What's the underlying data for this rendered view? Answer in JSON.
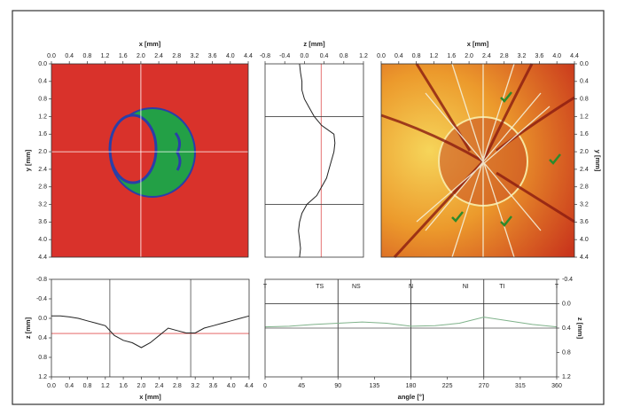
{
  "chart_data": [
    {
      "type": "image",
      "xlabel": "x [mm]",
      "ylabel": "y [mm]",
      "xlim": [
        0,
        4.4
      ],
      "xticks": [
        {
          "value": 0,
          "label": "0.0"
        },
        0.4,
        0.8,
        1.2,
        1.6,
        {
          "value": 2,
          "label": "2.0"
        },
        2.4,
        2.8,
        3.2,
        3.6,
        {
          "value": 4,
          "label": "4.0"
        },
        4.4
      ],
      "x_axis": "top",
      "ylim": [
        0,
        4.4
      ],
      "yticks": [
        {
          "value": 0,
          "label": "0.0"
        },
        0.4,
        0.8,
        1.2,
        1.6,
        {
          "value": 2,
          "label": "2.0"
        },
        2.4,
        2.8,
        3.2,
        3.6,
        {
          "value": 4,
          "label": "4.0"
        },
        4.4
      ],
      "y_axis": "left",
      "y_inverted": true,
      "reference_lines": [
        {
          "axis": "x",
          "value": 2.0,
          "color": "#ffffff"
        },
        {
          "axis": "y",
          "value": 2.0,
          "color": "#ffffff"
        }
      ]
    },
    {
      "type": "line",
      "xlabel": "z [mm]",
      "orientation": "vertical",
      "xlim": [
        -0.8,
        1.2
      ],
      "xticks": [
        -0.8,
        -0.4,
        {
          "value": 0,
          "label": "0.0"
        },
        0.4,
        0.8,
        1.2
      ],
      "x_axis": "top",
      "ylim": [
        0,
        4.4
      ],
      "y_inverted": true,
      "series": [
        {
          "color": "#222222",
          "y": [
            0,
            0.2,
            0.4,
            0.6,
            0.8,
            1.0,
            1.2,
            1.4,
            1.6,
            1.8,
            2.0,
            2.2,
            2.4,
            2.6,
            2.8,
            3.0,
            3.2,
            3.4,
            3.6,
            3.8,
            4.0,
            4.2,
            4.4
          ],
          "values": [
            -0.1,
            -0.08,
            -0.05,
            -0.05,
            0.0,
            0.1,
            0.2,
            0.35,
            0.6,
            0.62,
            0.6,
            0.55,
            0.5,
            0.45,
            0.35,
            0.25,
            0.05,
            -0.05,
            -0.1,
            -0.12,
            -0.1,
            -0.08,
            -0.1
          ]
        }
      ],
      "reference_lines": [
        {
          "axis": "x",
          "value": 0.34,
          "color": "#e05050"
        },
        {
          "axis": "y",
          "value": 1.2,
          "color": "#444444"
        },
        {
          "axis": "y",
          "value": 3.2,
          "color": "#444444"
        }
      ]
    },
    {
      "type": "image",
      "xlabel": "x [mm]",
      "ylabel": "y [mm]",
      "xlim": [
        0,
        4.4
      ],
      "xticks": [
        {
          "value": 0,
          "label": "0.0"
        },
        0.4,
        0.8,
        1.2,
        1.6,
        {
          "value": 2,
          "label": "2.0"
        },
        2.4,
        2.8,
        3.2,
        3.6,
        {
          "value": 4,
          "label": "4.0"
        },
        4.4
      ],
      "x_axis": "top",
      "ylim": [
        0,
        4.4
      ],
      "yticks": [
        {
          "value": 0,
          "label": "0.0"
        },
        0.4,
        0.8,
        1.2,
        1.6,
        {
          "value": 2,
          "label": "2.0"
        },
        2.4,
        2.8,
        3.2,
        3.6,
        {
          "value": 4,
          "label": "4.0"
        },
        4.4
      ],
      "y_axis": "right",
      "y_inverted": true
    },
    {
      "type": "line",
      "xlabel": "x [mm]",
      "ylabel": "z [mm]",
      "xlim": [
        0,
        4.4
      ],
      "xticks": [
        {
          "value": 0,
          "label": "0.0"
        },
        0.4,
        0.8,
        1.2,
        1.6,
        {
          "value": 2,
          "label": "2.0"
        },
        2.4,
        2.8,
        3.2,
        3.6,
        {
          "value": 4,
          "label": "4.0"
        },
        4.4
      ],
      "x_axis": "bottom",
      "ylim": [
        -0.8,
        1.2
      ],
      "yticks": [
        -0.8,
        -0.4,
        {
          "value": 0,
          "label": "0.0"
        },
        0.4,
        0.8,
        1.2
      ],
      "y_axis": "left",
      "y_inverted": true,
      "series": [
        {
          "color": "#222222",
          "x": [
            0,
            0.2,
            0.4,
            0.6,
            0.8,
            1.0,
            1.2,
            1.4,
            1.6,
            1.8,
            2.0,
            2.2,
            2.4,
            2.6,
            2.8,
            3.0,
            3.2,
            3.4,
            3.6,
            3.8,
            4.0,
            4.2,
            4.4
          ],
          "values": [
            -0.05,
            -0.05,
            -0.03,
            0.0,
            0.05,
            0.1,
            0.15,
            0.35,
            0.45,
            0.5,
            0.6,
            0.5,
            0.35,
            0.2,
            0.25,
            0.3,
            0.3,
            0.2,
            0.15,
            0.1,
            0.05,
            0.0,
            -0.05
          ]
        }
      ],
      "reference_lines": [
        {
          "axis": "x",
          "value": 1.3,
          "color": "#444444"
        },
        {
          "axis": "x",
          "value": 3.1,
          "color": "#444444"
        },
        {
          "axis": "y",
          "value": 0.31,
          "color": "#e05050"
        }
      ]
    },
    {
      "type": "line",
      "xlabel": "angle [°]",
      "ylabel": "z [mm]",
      "xlim": [
        0,
        360
      ],
      "xticks": [
        0,
        45,
        90,
        135,
        180,
        225,
        270,
        315,
        360
      ],
      "x_axis": "bottom",
      "ylim": [
        -0.4,
        1.2
      ],
      "yticks": [
        -0.4,
        {
          "value": 0,
          "label": "0.0"
        },
        0.4,
        0.8,
        1.2
      ],
      "y_axis": "right",
      "y_inverted": true,
      "series": [
        {
          "color": "#7fb28a",
          "x": [
            0,
            30,
            60,
            90,
            120,
            150,
            180,
            210,
            240,
            270,
            300,
            330,
            360
          ],
          "values": [
            0.38,
            0.37,
            0.34,
            0.32,
            0.3,
            0.32,
            0.37,
            0.36,
            0.32,
            0.22,
            0.28,
            0.34,
            0.38
          ]
        }
      ],
      "reference_lines": [
        {
          "axis": "x",
          "value": 90,
          "color": "#222222"
        },
        {
          "axis": "x",
          "value": 180,
          "color": "#222222"
        },
        {
          "axis": "x",
          "value": 270,
          "color": "#222222"
        },
        {
          "axis": "y",
          "value": 0.0,
          "color": "#222222"
        },
        {
          "axis": "y",
          "value": 0.4,
          "color": "#555555"
        }
      ],
      "sectors": [
        {
          "label": "T",
          "angle": 0
        },
        {
          "label": "TS",
          "angle": 67.5
        },
        {
          "label": "NS",
          "angle": 112.5
        },
        {
          "label": "N",
          "angle": 180
        },
        {
          "label": "NI",
          "angle": 247.5
        },
        {
          "label": "TI",
          "angle": 292.5
        },
        {
          "label": "T",
          "angle": 360
        }
      ]
    }
  ]
}
